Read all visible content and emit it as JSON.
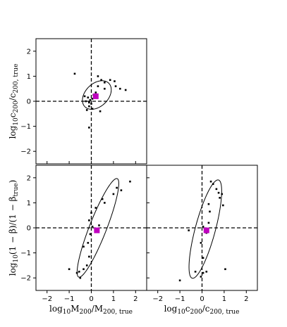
{
  "figure": {
    "colors": {
      "points": "#000000",
      "marker": "#bf00bf",
      "ellipse": "#000000",
      "axes": "#000000"
    }
  },
  "chart_data": [
    {
      "id": "panel-top-left",
      "type": "scatter",
      "xlim": [
        -2.5,
        2.5
      ],
      "ylim": [
        -2.5,
        2.5
      ],
      "xticks": [],
      "yticks": [
        "−2",
        "−1",
        "0",
        "1",
        "2"
      ],
      "xlabel": "",
      "ylabel": "log10 c200 / c200,true",
      "reference_lines": {
        "x": 0,
        "y": 0
      },
      "marker": {
        "x": 0.2,
        "y": 0.2,
        "shape": "square"
      },
      "ellipse": {
        "cx": 0.25,
        "cy": 0.25,
        "rx": 0.72,
        "ry": 0.48,
        "angle_deg": 35
      },
      "points": [
        [
          -0.75,
          1.1
        ],
        [
          0.3,
          1.0
        ],
        [
          0.45,
          0.85
        ],
        [
          0.6,
          0.75
        ],
        [
          0.85,
          0.85
        ],
        [
          1.05,
          0.8
        ],
        [
          1.1,
          0.6
        ],
        [
          1.3,
          0.5
        ],
        [
          1.55,
          0.45
        ],
        [
          0.6,
          0.5
        ],
        [
          0.3,
          0.6
        ],
        [
          0.2,
          0.35
        ],
        [
          0.1,
          0.25
        ],
        [
          0.05,
          0.1
        ],
        [
          -0.05,
          0.05
        ],
        [
          -0.15,
          0.15
        ],
        [
          -0.25,
          0.0
        ],
        [
          -0.1,
          -0.05
        ],
        [
          0.0,
          -0.1
        ],
        [
          -0.1,
          -0.2
        ],
        [
          0.05,
          -0.3
        ],
        [
          -0.2,
          -0.35
        ],
        [
          0.4,
          -0.4
        ],
        [
          -0.3,
          0.2
        ],
        [
          -0.1,
          -1.05
        ]
      ]
    },
    {
      "id": "panel-bottom-left",
      "type": "scatter",
      "xlim": [
        -2.5,
        2.5
      ],
      "ylim": [
        -2.5,
        2.5
      ],
      "xticks": [
        "−2",
        "−1",
        "0",
        "1",
        "2"
      ],
      "yticks": [
        "−2",
        "−1",
        "0",
        "1",
        "2"
      ],
      "xlabel": "log10 M200 / M200,true",
      "ylabel": "log10(1 − β)/(1 − βtrue)",
      "reference_lines": {
        "x": 0,
        "y": 0
      },
      "marker": {
        "x": 0.25,
        "y": -0.1,
        "shape": "square"
      },
      "ellipse": {
        "cx": 0.3,
        "cy": 0.0,
        "rx": 2.15,
        "ry": 0.38,
        "angle_deg": 66
      },
      "points": [
        [
          1.75,
          1.85
        ],
        [
          1.35,
          1.5
        ],
        [
          1.15,
          1.6
        ],
        [
          1.0,
          1.35
        ],
        [
          0.5,
          1.15
        ],
        [
          0.6,
          1.0
        ],
        [
          0.2,
          0.8
        ],
        [
          0.0,
          0.6
        ],
        [
          -0.1,
          0.3
        ],
        [
          0.05,
          0.05
        ],
        [
          0.35,
          0.1
        ],
        [
          0.3,
          -0.1
        ],
        [
          -0.05,
          -0.25
        ],
        [
          -0.15,
          -0.6
        ],
        [
          -0.35,
          -0.75
        ],
        [
          -0.1,
          -1.15
        ],
        [
          -0.2,
          -1.5
        ],
        [
          -0.35,
          -1.65
        ],
        [
          -0.55,
          -1.75
        ],
        [
          -0.65,
          -1.8
        ],
        [
          -1.0,
          -1.65
        ],
        [
          -0.5,
          -2.0
        ]
      ]
    },
    {
      "id": "panel-bottom-right",
      "type": "scatter",
      "xlim": [
        -2.5,
        2.5
      ],
      "ylim": [
        -2.5,
        2.5
      ],
      "xticks": [
        "−2",
        "−1",
        "0",
        "1",
        "2"
      ],
      "yticks": [],
      "xlabel": "log10 c200 / c200,true",
      "ylabel": "",
      "reference_lines": {
        "x": 0,
        "y": 0
      },
      "marker": {
        "x": 0.2,
        "y": -0.1,
        "shape": "square"
      },
      "ellipse": {
        "cx": 0.15,
        "cy": -0.05,
        "rx": 2.05,
        "ry": 0.45,
        "angle_deg": 73
      },
      "points": [
        [
          0.4,
          1.85
        ],
        [
          0.5,
          1.75
        ],
        [
          0.65,
          1.55
        ],
        [
          0.75,
          1.4
        ],
        [
          0.9,
          1.35
        ],
        [
          0.8,
          1.2
        ],
        [
          0.95,
          0.9
        ],
        [
          0.3,
          0.95
        ],
        [
          0.35,
          0.65
        ],
        [
          0.3,
          0.2
        ],
        [
          -0.6,
          -0.1
        ],
        [
          0.05,
          0.05
        ],
        [
          0.2,
          -0.2
        ],
        [
          -0.05,
          -0.6
        ],
        [
          0.05,
          -1.2
        ],
        [
          -0.3,
          -1.75
        ],
        [
          0.05,
          -1.8
        ],
        [
          0.2,
          -1.75
        ],
        [
          -0.05,
          -1.95
        ],
        [
          1.05,
          -1.65
        ],
        [
          -1.0,
          -2.1
        ]
      ]
    }
  ]
}
